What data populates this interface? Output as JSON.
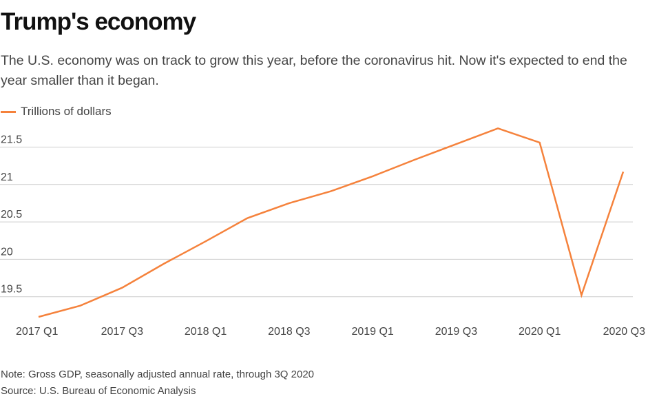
{
  "header": {
    "title": "Trump's economy",
    "subtitle": "The U.S. economy was on track to grow this year, before the coronavirus hit. Now it's expected to end the year smaller than it began."
  },
  "footer": {
    "note": "Note: Gross GDP, seasonally adjusted annual rate, through 3Q 2020",
    "source": "Source: U.S. Bureau of Economic Analysis"
  },
  "colors": {
    "line": "#f5823c",
    "grid": "#cccccc"
  },
  "chart_data": {
    "type": "line",
    "title": "Trump's economy",
    "xlabel": "",
    "ylabel": "",
    "legend_position": "top-left",
    "grid": true,
    "ylim": [
      19.25,
      21.75
    ],
    "yticks": [
      19.5,
      20,
      20.5,
      21,
      21.5
    ],
    "ytick_labels": [
      "19.5",
      "20",
      "20.5",
      "21",
      "21.5"
    ],
    "categories": [
      "2017 Q1",
      "2017 Q2",
      "2017 Q3",
      "2017 Q4",
      "2018 Q1",
      "2018 Q2",
      "2018 Q3",
      "2018 Q4",
      "2019 Q1",
      "2019 Q2",
      "2019 Q3",
      "2019 Q4",
      "2020 Q1",
      "2020 Q2",
      "2020 Q3"
    ],
    "xtick_labels": [
      "2017 Q1",
      "2017 Q3",
      "2018 Q1",
      "2018 Q3",
      "2019 Q1",
      "2019 Q3",
      "2020 Q1",
      "2020 Q3"
    ],
    "series": [
      {
        "name": "Trillions of dollars",
        "values": [
          19.23,
          19.38,
          19.62,
          19.94,
          20.24,
          20.55,
          20.75,
          20.91,
          21.11,
          21.33,
          21.54,
          21.75,
          21.56,
          19.52,
          21.17
        ]
      }
    ]
  }
}
